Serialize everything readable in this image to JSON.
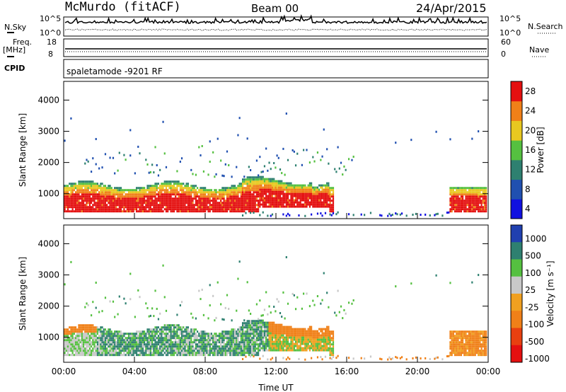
{
  "header": {
    "title": "McMurdo (fitACF)",
    "beam": "Beam 00",
    "date": "24/Apr/2015"
  },
  "noise_panel": {
    "left_label": "N.Sky",
    "right_label": "N.Search",
    "left_ticks": [
      "10^5",
      "10^0"
    ],
    "right_ticks": [
      "10^5",
      "10^0"
    ]
  },
  "freq_panel": {
    "left_label_1": "Freq.",
    "left_label_2": "[MHz]",
    "right_label": "Nave",
    "left_ticks": [
      "18",
      "8"
    ],
    "right_ticks": [
      "60",
      "0"
    ]
  },
  "cpid_panel": {
    "label": "CPID",
    "mode_text": "spaletamode -9201 RF"
  },
  "chart_data": [
    {
      "type": "heatmap",
      "name": "power",
      "ylabel": "Slant Range [km]",
      "yticks": [
        1000,
        2000,
        3000,
        4000
      ],
      "ylim": [
        200,
        4600
      ],
      "xlim": [
        0,
        24
      ],
      "colorbar_label": "Power [dB]",
      "colorbar_ticks": [
        "4",
        "8",
        "12",
        "16",
        "20",
        "24",
        "28"
      ],
      "colorbar_colors": [
        "#1010e0",
        "#2050b0",
        "#2e8070",
        "#55c040",
        "#e8c820",
        "#f08018",
        "#e41010"
      ]
    },
    {
      "type": "heatmap",
      "name": "velocity",
      "ylabel": "Slant Range [km]",
      "yticks": [
        1000,
        2000,
        3000,
        4000
      ],
      "ylim": [
        200,
        4600
      ],
      "xlim": [
        0,
        24
      ],
      "xticks": [
        "00:00",
        "04:00",
        "08:00",
        "12:00",
        "16:00",
        "20:00",
        "00:00"
      ],
      "xlabel": "Time UT",
      "colorbar_label": "Velocity [m s⁻¹]",
      "colorbar_ticks": [
        "1000",
        "500",
        "100",
        "25",
        "-25",
        "-100",
        "-500",
        "-1000"
      ],
      "colorbar_colors": [
        "#2040b0",
        "#2e8070",
        "#55c040",
        "#c8c8c8",
        "#f0a020",
        "#f08018",
        "#e84010",
        "#e41010"
      ]
    }
  ]
}
